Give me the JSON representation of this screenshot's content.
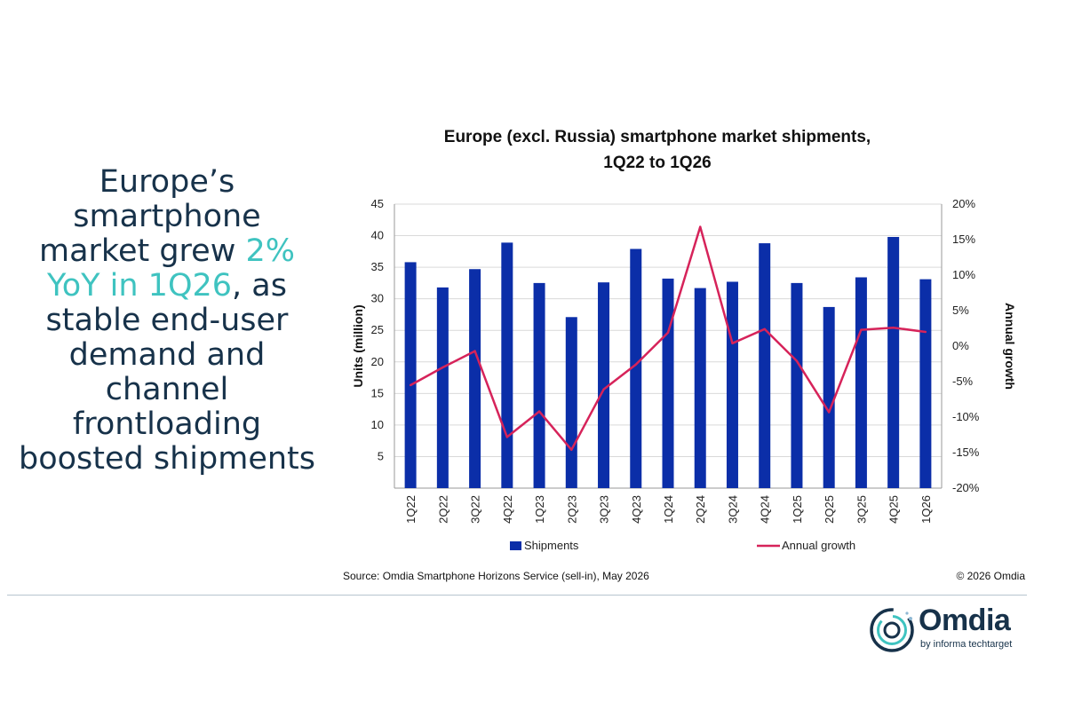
{
  "headline": {
    "part1": "Europe’s smartphone market grew ",
    "highlight": "2% YoY in 1Q26",
    "part2": ", as stable end-user demand and channel frontloading boosted shipments"
  },
  "chart_data": {
    "type": "bar",
    "title_line1": "Europe (excl. Russia) smartphone market shipments,",
    "title_line2": "1Q22 to 1Q26",
    "categories": [
      "1Q22",
      "2Q22",
      "3Q22",
      "4Q22",
      "1Q23",
      "2Q23",
      "3Q23",
      "4Q23",
      "1Q24",
      "2Q24",
      "3Q24",
      "4Q24",
      "1Q25",
      "2Q25",
      "3Q25",
      "4Q25",
      "1Q26"
    ],
    "series": [
      {
        "name": "Shipments",
        "type": "bar",
        "axis": "left",
        "color": "#0b2ea8",
        "values": [
          35.8,
          31.8,
          34.7,
          38.9,
          32.5,
          27.1,
          32.6,
          37.9,
          33.2,
          31.7,
          32.7,
          38.8,
          32.5,
          28.7,
          33.4,
          39.8,
          33.1
        ]
      },
      {
        "name": "Annual growth",
        "type": "line",
        "axis": "right",
        "color": "#d6235a",
        "values": [
          -5.5,
          -3,
          -0.7,
          -12.8,
          -9.2,
          -14.6,
          -6.1,
          -2.6,
          1.9,
          16.8,
          0.4,
          2.4,
          -2.1,
          -9.3,
          2.3,
          2.6,
          2
        ]
      }
    ],
    "ylabel": "Units (million)",
    "ylabel_right": "Annual growth",
    "ylim": [
      0,
      45
    ],
    "yticks": [
      "5",
      "10",
      "15",
      "20",
      "25",
      "30",
      "35",
      "40",
      "45"
    ],
    "ylim_right": [
      -20,
      20
    ],
    "yticks_right": [
      "-20%",
      "-15%",
      "-10%",
      "-5%",
      "0%",
      "5%",
      "10%",
      "15%",
      "20%"
    ],
    "grid": true,
    "legend_position": "bottom"
  },
  "footer": {
    "source": "Source: Omdia Smartphone Horizons Service (sell-in), May 2026",
    "copyright": "© 2026 Omdia"
  },
  "logo": {
    "name": "Omdia",
    "tagline": "by informa techtarget"
  }
}
